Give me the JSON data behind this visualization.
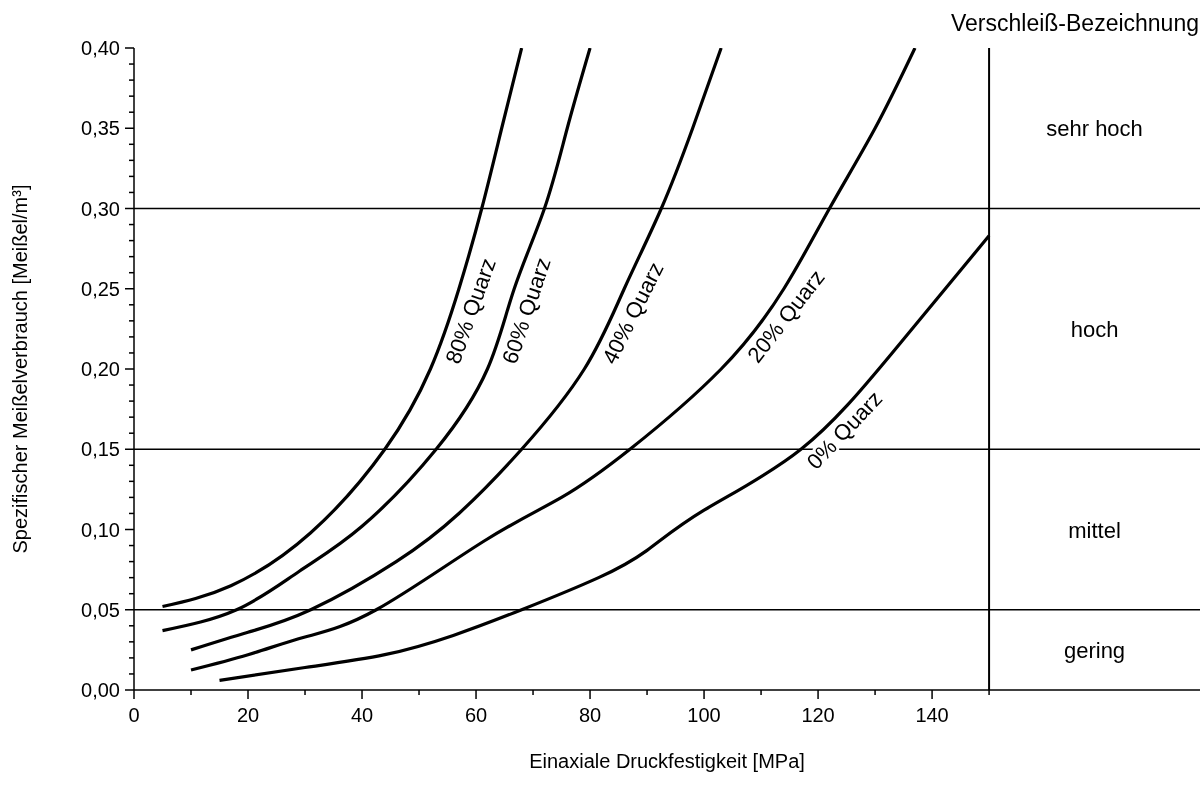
{
  "chart_data": {
    "type": "line",
    "title": "Verschleiß-Bezeichnung",
    "xlabel": "Einaxiale Druckfestigkeit [MPa]",
    "ylabel": "Spezifischer Meißelverbrauch [Meißel/m³]",
    "xlim": [
      0,
      187
    ],
    "ylim": [
      0,
      0.4
    ],
    "xticks": [
      0,
      {
        "value": 10,
        "label": null
      },
      20,
      {
        "value": 30,
        "label": null
      },
      40,
      {
        "value": 50,
        "label": null
      },
      60,
      {
        "value": 70,
        "label": null
      },
      80,
      {
        "value": 90,
        "label": null
      },
      100,
      {
        "value": 110,
        "label": null
      },
      120,
      {
        "value": 130,
        "label": null
      },
      140,
      {
        "value": 150,
        "label": null
      }
    ],
    "yticks": [
      {
        "value": 0,
        "label": "0,00"
      },
      {
        "value": 0.01,
        "label": null
      },
      {
        "value": 0.02,
        "label": null
      },
      {
        "value": 0.03,
        "label": null
      },
      {
        "value": 0.04,
        "label": null
      },
      {
        "value": 0.05,
        "label": "0,05"
      },
      {
        "value": 0.06,
        "label": null
      },
      {
        "value": 0.07,
        "label": null
      },
      {
        "value": 0.08,
        "label": null
      },
      {
        "value": 0.09,
        "label": null
      },
      {
        "value": 0.1,
        "label": "0,10"
      },
      {
        "value": 0.11,
        "label": null
      },
      {
        "value": 0.12,
        "label": null
      },
      {
        "value": 0.13,
        "label": null
      },
      {
        "value": 0.14,
        "label": null
      },
      {
        "value": 0.15,
        "label": "0,15"
      },
      {
        "value": 0.16,
        "label": null
      },
      {
        "value": 0.17,
        "label": null
      },
      {
        "value": 0.18,
        "label": null
      },
      {
        "value": 0.19,
        "label": null
      },
      {
        "value": 0.2,
        "label": "0,20"
      },
      {
        "value": 0.21,
        "label": null
      },
      {
        "value": 0.22,
        "label": null
      },
      {
        "value": 0.23,
        "label": null
      },
      {
        "value": 0.24,
        "label": null
      },
      {
        "value": 0.25,
        "label": "0,25"
      },
      {
        "value": 0.26,
        "label": null
      },
      {
        "value": 0.27,
        "label": null
      },
      {
        "value": 0.28,
        "label": null
      },
      {
        "value": 0.29,
        "label": null
      },
      {
        "value": 0.3,
        "label": "0,30"
      },
      {
        "value": 0.31,
        "label": null
      },
      {
        "value": 0.32,
        "label": null
      },
      {
        "value": 0.33,
        "label": null
      },
      {
        "value": 0.34,
        "label": null
      },
      {
        "value": 0.35,
        "label": "0,35"
      },
      {
        "value": 0.36,
        "label": null
      },
      {
        "value": 0.37,
        "label": null
      },
      {
        "value": 0.38,
        "label": null
      },
      {
        "value": 0.39,
        "label": null
      },
      {
        "value": 0.4,
        "label": "0,40"
      }
    ],
    "marker": "none",
    "series": [
      {
        "name": "80% Quarz",
        "color": "#000000",
        "x": [
          5,
          17,
          31,
          44,
          52,
          57,
          61,
          64.5,
          68
        ],
        "values": [
          0.052,
          0.065,
          0.098,
          0.15,
          0.2,
          0.25,
          0.3,
          0.35,
          0.4
        ]
      },
      {
        "name": "60% Quarz",
        "color": "#000000",
        "x": [
          5,
          18,
          29,
          40,
          53,
          62,
          66.7,
          72,
          76,
          80
        ],
        "values": [
          0.037,
          0.05,
          0.074,
          0.102,
          0.15,
          0.2,
          0.25,
          0.3,
          0.35,
          0.4
        ]
      },
      {
        "name": "40% Quarz",
        "color": "#000000",
        "x": [
          10,
          20,
          31,
          46,
          57,
          68,
          79,
          86,
          92.5,
          98,
          103
        ],
        "values": [
          0.025,
          0.036,
          0.05,
          0.08,
          0.11,
          0.15,
          0.2,
          0.25,
          0.3,
          0.35,
          0.4
        ]
      },
      {
        "name": "20% Quarz",
        "color": "#000000",
        "x": [
          10,
          20,
          30,
          42.5,
          61.5,
          75,
          87,
          103,
          114,
          122,
          130,
          137
        ],
        "values": [
          0.0125,
          0.022,
          0.033,
          0.05,
          0.093,
          0.12,
          0.15,
          0.2,
          0.25,
          0.3,
          0.35,
          0.4
        ]
      },
      {
        "name": "0% Quarz",
        "color": "#000000",
        "x": [
          15,
          30,
          44,
          56,
          68,
          81.5,
          90,
          100,
          117,
          133,
          150
        ],
        "values": [
          0.006,
          0.014,
          0.022,
          0.034,
          0.05,
          0.07,
          0.087,
          0.112,
          0.15,
          0.21,
          0.283
        ]
      }
    ],
    "ref_lines": [
      {
        "axis": "y",
        "value": 0.05,
        "color": "#000000"
      },
      {
        "axis": "y",
        "value": 0.15,
        "color": "#000000"
      },
      {
        "axis": "y",
        "value": 0.3,
        "color": "#000000"
      },
      {
        "axis": "x",
        "value": 150,
        "color": "#000000"
      }
    ],
    "annotations": [
      "sehr hoch",
      "hoch",
      "mittel",
      "gering"
    ]
  }
}
